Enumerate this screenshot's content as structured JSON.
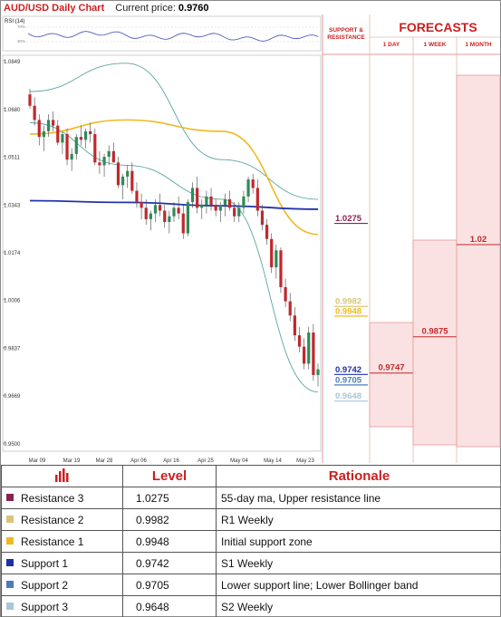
{
  "header": {
    "title": "AUD/USD Daily Chart",
    "current_price_label": "Current price:",
    "current_price": "0.9760"
  },
  "rsi": {
    "label": "RSI (14)",
    "levels": [
      "70%",
      "30%"
    ]
  },
  "forecast_panel": {
    "title": "FORECASTS",
    "sr_label": "SUPPORT & RESISTANCE",
    "columns": [
      "1 DAY",
      "1 WEEK",
      "1 MONTH"
    ],
    "forecast_values": {
      "one_day": "0.9747",
      "one_week": "0.9875",
      "one_month": "1.02"
    }
  },
  "colors": {
    "accent": "#cc1f1f",
    "bull_candle": "#2e8b57",
    "bear_candle": "#c0282d",
    "ma_long": "#2233aa",
    "ma_short": "#f0b820",
    "bollinger": "#5aa6a0",
    "forecast_fill": "#fbe2e2",
    "forecast_border": "#e59a9a",
    "resistance_3": "#8b2252",
    "resistance_2": "#d8c47a",
    "resistance_1": "#f0b820",
    "support_1": "#1f2fa8",
    "support_2": "#4b7db8",
    "support_3": "#a9c6d8"
  },
  "levels_on_chart": [
    {
      "value": 1.0275,
      "label": "1.0275",
      "color": "#8b2252"
    },
    {
      "value": 0.9982,
      "label": "0.9982",
      "color": "#d8c47a"
    },
    {
      "value": 0.9948,
      "label": "0.9948",
      "color": "#f0b820"
    },
    {
      "value": 0.9742,
      "label": "0.9742",
      "color": "#1f2fa8"
    },
    {
      "value": 0.9705,
      "label": "0.9705",
      "color": "#4b7db8"
    },
    {
      "value": 0.9648,
      "label": "0.9648",
      "color": "#a9c6d8"
    }
  ],
  "table": {
    "icon": "bar-chart-icon",
    "headers": {
      "level": "Level",
      "rationale": "Rationale"
    },
    "rows": [
      {
        "name": "Resistance 3",
        "level": "1.0275",
        "rationale": "55-day ma, Upper resistance line",
        "color": "#8b2252"
      },
      {
        "name": "Resistance 2",
        "level": "0.9982",
        "rationale": "R1 Weekly",
        "color": "#d8c47a"
      },
      {
        "name": "Resistance 1",
        "level": "0.9948",
        "rationale": "Initial support zone",
        "color": "#f0b820"
      },
      {
        "name": "Support 1",
        "level": "0.9742",
        "rationale": "S1 Weekly",
        "color": "#1f2fa8"
      },
      {
        "name": "Support 2",
        "level": "0.9705",
        "rationale": "Lower support line; Lower Bollinger band",
        "color": "#4b7db8"
      },
      {
        "name": "Support 3",
        "level": "0.9648",
        "rationale": "S2 Weekly",
        "color": "#a9c6d8"
      }
    ]
  },
  "chart_data": {
    "type": "candlestick",
    "ylim": [
      0.95,
      1.0849
    ],
    "yticks": [
      "1.0849",
      "1.0680",
      "1.0511",
      "1.0343",
      "1.0174",
      "1.0006",
      "0.9837",
      "0.9669",
      "0.9500"
    ],
    "xticks": [
      "Mar 09",
      "Mar 19",
      "Mar 28",
      "Apr 06",
      "Apr 16",
      "Apr 25",
      "May 04",
      "May 14",
      "May 23"
    ],
    "candles": [
      [
        1.073,
        1.075,
        1.068,
        1.069
      ],
      [
        1.069,
        1.072,
        1.062,
        1.064
      ],
      [
        1.064,
        1.066,
        1.055,
        1.058
      ],
      [
        1.058,
        1.062,
        1.053,
        1.06
      ],
      [
        1.06,
        1.066,
        1.058,
        1.064
      ],
      [
        1.064,
        1.067,
        1.06,
        1.062
      ],
      [
        1.062,
        1.064,
        1.055,
        1.056
      ],
      [
        1.056,
        1.06,
        1.052,
        1.059
      ],
      [
        1.059,
        1.061,
        1.048,
        1.05
      ],
      [
        1.05,
        1.054,
        1.046,
        1.052
      ],
      [
        1.052,
        1.059,
        1.05,
        1.058
      ],
      [
        1.058,
        1.062,
        1.055,
        1.057
      ],
      [
        1.057,
        1.061,
        1.054,
        1.06
      ],
      [
        1.06,
        1.063,
        1.056,
        1.059
      ],
      [
        1.059,
        1.061,
        1.048,
        1.049
      ],
      [
        1.049,
        1.053,
        1.045,
        1.048
      ],
      [
        1.048,
        1.052,
        1.044,
        1.051
      ],
      [
        1.051,
        1.055,
        1.048,
        1.053
      ],
      [
        1.053,
        1.056,
        1.05,
        1.049
      ],
      [
        1.049,
        1.051,
        1.04,
        1.041
      ],
      [
        1.041,
        1.045,
        1.036,
        1.044
      ],
      [
        1.044,
        1.048,
        1.04,
        1.046
      ],
      [
        1.046,
        1.049,
        1.038,
        1.039
      ],
      [
        1.039,
        1.042,
        1.033,
        1.035
      ],
      [
        1.035,
        1.038,
        1.029,
        1.033
      ],
      [
        1.033,
        1.036,
        1.027,
        1.029
      ],
      [
        1.029,
        1.032,
        1.025,
        1.031
      ],
      [
        1.031,
        1.036,
        1.028,
        1.034
      ],
      [
        1.034,
        1.038,
        1.03,
        1.032
      ],
      [
        1.032,
        1.034,
        1.026,
        1.028
      ],
      [
        1.028,
        1.032,
        1.024,
        1.03
      ],
      [
        1.03,
        1.035,
        1.028,
        1.033
      ],
      [
        1.033,
        1.037,
        1.029,
        1.031
      ],
      [
        1.031,
        1.034,
        1.022,
        1.024
      ],
      [
        1.024,
        1.036,
        1.023,
        1.035
      ],
      [
        1.035,
        1.042,
        1.033,
        1.04
      ],
      [
        1.04,
        1.044,
        1.031,
        1.033
      ],
      [
        1.033,
        1.036,
        1.029,
        1.034
      ],
      [
        1.034,
        1.039,
        1.031,
        1.037
      ],
      [
        1.037,
        1.04,
        1.032,
        1.034
      ],
      [
        1.034,
        1.036,
        1.03,
        1.032
      ],
      [
        1.032,
        1.035,
        1.028,
        1.034
      ],
      [
        1.034,
        1.038,
        1.03,
        1.036
      ],
      [
        1.036,
        1.039,
        1.032,
        1.033
      ],
      [
        1.033,
        1.035,
        1.028,
        1.03
      ],
      [
        1.03,
        1.035,
        1.028,
        1.033
      ],
      [
        1.033,
        1.039,
        1.031,
        1.037
      ],
      [
        1.037,
        1.044,
        1.035,
        1.043
      ],
      [
        1.043,
        1.045,
        1.038,
        1.04
      ],
      [
        1.04,
        1.043,
        1.03,
        1.032
      ],
      [
        1.032,
        1.034,
        1.025,
        1.027
      ],
      [
        1.027,
        1.029,
        1.02,
        1.022
      ],
      [
        1.022,
        1.024,
        1.01,
        1.012
      ],
      [
        1.012,
        1.02,
        1.008,
        1.018
      ],
      [
        1.018,
        1.019,
        1.003,
        1.005
      ],
      [
        1.005,
        1.008,
        0.998,
        1.0
      ],
      [
        1.0,
        1.003,
        0.993,
        0.995
      ],
      [
        0.995,
        0.998,
        0.986,
        0.988
      ],
      [
        0.988,
        0.991,
        0.982,
        0.984
      ],
      [
        0.984,
        0.987,
        0.976,
        0.978
      ],
      [
        0.978,
        0.991,
        0.976,
        0.989
      ],
      [
        0.989,
        0.992,
        0.972,
        0.974
      ],
      [
        0.974,
        0.978,
        0.97,
        0.976
      ]
    ],
    "ma_long": [
      1.0355,
      1.0349,
      1.0337,
      1.0325
    ],
    "ma_short": [
      1.059,
      1.064,
      1.06,
      1.0236
    ],
    "bollinger_upper": [
      1.074,
      1.084,
      1.05,
      1.036
    ],
    "bollinger_lower": [
      1.063,
      1.048,
      1.036,
      0.968
    ]
  }
}
